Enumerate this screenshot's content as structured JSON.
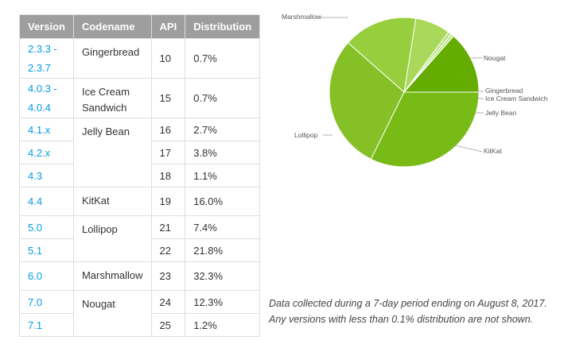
{
  "table": {
    "headers": [
      "Version",
      "Codename",
      "API",
      "Distribution"
    ],
    "rows": [
      {
        "version": "2.3.3 -\n2.3.7",
        "codename": "Gingerbread",
        "api": "10",
        "distribution": "0.7%"
      },
      {
        "version": "4.0.3 -\n4.0.4",
        "codename": "Ice Cream Sandwich",
        "api": "15",
        "distribution": "0.7%"
      },
      {
        "version": "4.1.x",
        "codename": "Jelly Bean",
        "api": "16",
        "distribution": "2.7%"
      },
      {
        "version": "4.2.x",
        "codename": "",
        "api": "17",
        "distribution": "3.8%"
      },
      {
        "version": "4.3",
        "codename": "",
        "api": "18",
        "distribution": "1.1%"
      },
      {
        "version": "4.4",
        "codename": "KitKat",
        "api": "19",
        "distribution": "16.0%"
      },
      {
        "version": "5.0",
        "codename": "Lollipop",
        "api": "21",
        "distribution": "7.4%"
      },
      {
        "version": "5.1",
        "codename": "",
        "api": "22",
        "distribution": "21.8%"
      },
      {
        "version": "6.0",
        "codename": "Marshmallow",
        "api": "23",
        "distribution": "32.3%"
      },
      {
        "version": "7.0",
        "codename": "Nougat",
        "api": "24",
        "distribution": "12.3%"
      },
      {
        "version": "7.1",
        "codename": "",
        "api": "25",
        "distribution": "1.2%"
      }
    ]
  },
  "chart_data": {
    "type": "pie",
    "start_angle_deg": 90,
    "direction": "clockwise",
    "slices": [
      {
        "name": "Nougat",
        "value": 13.5,
        "color": "#64ac00"
      },
      {
        "name": "Gingerbread",
        "value": 0.7,
        "color": "#c4e596"
      },
      {
        "name": "Ice Cream Sandwich",
        "value": 0.7,
        "color": "#b7e07c"
      },
      {
        "name": "Jelly Bean",
        "value": 7.6,
        "color": "#a9d85b"
      },
      {
        "name": "KitKat",
        "value": 16.0,
        "color": "#97ce3e"
      },
      {
        "name": "Lollipop",
        "value": 29.2,
        "color": "#85c126"
      },
      {
        "name": "Marshmallow",
        "value": 32.3,
        "color": "#78bb16"
      }
    ]
  },
  "footnote": {
    "line1": "Data collected during a 7-day period ending on August 8, 2017.",
    "line2": "Any versions with less than 0.1% distribution are not shown."
  }
}
